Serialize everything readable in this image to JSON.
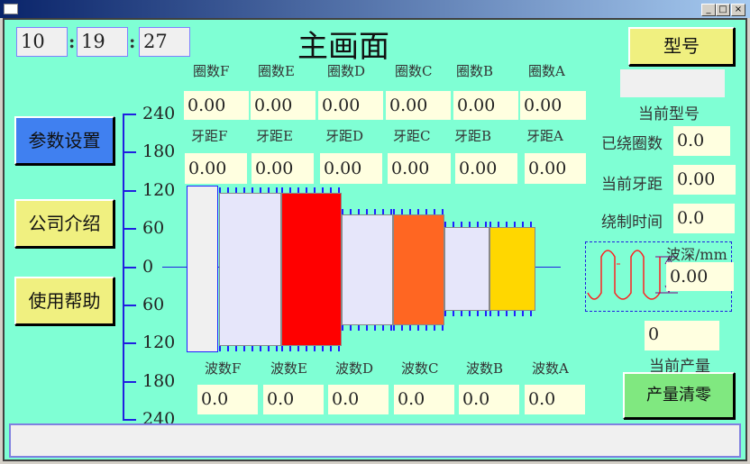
{
  "window": {
    "buttons": [
      "_",
      "□",
      "×"
    ]
  },
  "time": {
    "hour": "10",
    "minute": "19",
    "second": "27",
    "separator": ":"
  },
  "title": "主画面",
  "model_button": "型号",
  "current_model": {
    "value": "",
    "label": "当前型号"
  },
  "turns": {
    "labels": [
      "圈数F",
      "圈数E",
      "圈数D",
      "圈数C",
      "圈数B",
      "圈数A"
    ],
    "values": [
      "0.00",
      "0.00",
      "0.00",
      "0.00",
      "0.00",
      "0.00"
    ]
  },
  "pitch": {
    "labels": [
      "牙距F",
      "牙距E",
      "牙距D",
      "牙距C",
      "牙距B",
      "牙距A"
    ],
    "values": [
      "0.00",
      "0.00",
      "0.00",
      "0.00",
      "0.00",
      "0.00"
    ]
  },
  "waves": {
    "labels": [
      "波数F",
      "波数E",
      "波数D",
      "波数C",
      "波数B",
      "波数A"
    ],
    "values": [
      "0.0",
      "0.0",
      "0.0",
      "0.0",
      "0.0",
      "0.0"
    ]
  },
  "sidebar": {
    "items": [
      {
        "label": "参数设置",
        "color": "#4080f0"
      },
      {
        "label": "公司介绍",
        "color": "#f0f080"
      },
      {
        "label": "使用帮助",
        "color": "#f0f080"
      }
    ]
  },
  "axis": {
    "ticks": [
      "240",
      "180",
      "120",
      "60",
      "0",
      "60",
      "120",
      "180",
      "240"
    ]
  },
  "segments": {
    "colors": [
      "#f0f0f0",
      "#e6e6fa",
      "#ff0000",
      "#e6e6fa",
      "#ff6622",
      "#e6e6fa",
      "#ffd700"
    ]
  },
  "status": {
    "wound_turns": {
      "label": "已绕圈数",
      "value": "0.0"
    },
    "current_pitch": {
      "label": "当前牙距",
      "value": "0.00"
    },
    "winding_time": {
      "label": "绕制时间",
      "value": "0.0"
    },
    "wave_depth": {
      "label": "波深/mm",
      "value": "0.00"
    },
    "output": {
      "label": "当前产量",
      "value": "0"
    }
  },
  "reset_button": "产量清零",
  "statusbar": ""
}
